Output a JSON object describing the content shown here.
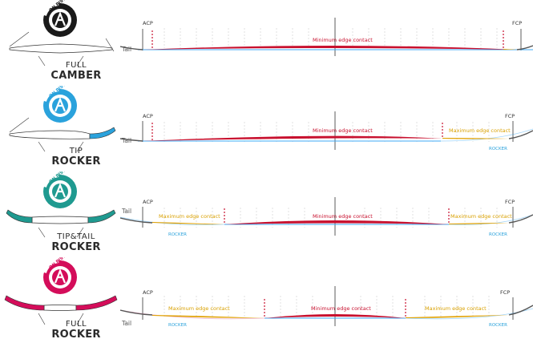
{
  "common": {
    "tail_label": "Tail",
    "acp_label": "ACP",
    "fcp_label": "FCP",
    "logo_text": "ON PISTE"
  },
  "colors": {
    "full_camber": "#1a1a1a",
    "tip_rocker": "#2aa2dc",
    "tiptail_rocker": "#1f9a90",
    "full_rocker": "#d40d5a",
    "min_contact": "#c8102e",
    "max_contact": "#d9a000",
    "rocker": "#2aa2dc"
  },
  "profiles": [
    {
      "id": "full-camber",
      "title_line1": "FULL",
      "title_line2": "CAMBER",
      "min_label": "Minimum edge contact",
      "max_left_label": "",
      "max_right_label": "",
      "rocker_left_label": "",
      "rocker_right_label": ""
    },
    {
      "id": "tip-rocker",
      "title_line1": "TIP",
      "title_line2": "ROCKER",
      "min_label": "Minimum edge contact",
      "max_left_label": "",
      "max_right_label": "Maximum edge contact",
      "rocker_left_label": "",
      "rocker_right_label": "ROCKER"
    },
    {
      "id": "tiptail-rocker",
      "title_line1": "TIP&TAIL",
      "title_line2": "ROCKER",
      "min_label": "Minimum edge contact",
      "max_left_label": "Maximum edge contact",
      "max_right_label": "Maximum edge contact",
      "rocker_left_label": "ROCKER",
      "rocker_right_label": "ROCKER"
    },
    {
      "id": "full-rocker",
      "title_line1": "FULL",
      "title_line2": "ROCKER",
      "min_label": "Minimum edge contact",
      "max_left_label": "Maximum edge contact",
      "max_right_label": "Maximum edge contact",
      "rocker_left_label": "ROCKER",
      "rocker_right_label": "ROCKER"
    }
  ]
}
